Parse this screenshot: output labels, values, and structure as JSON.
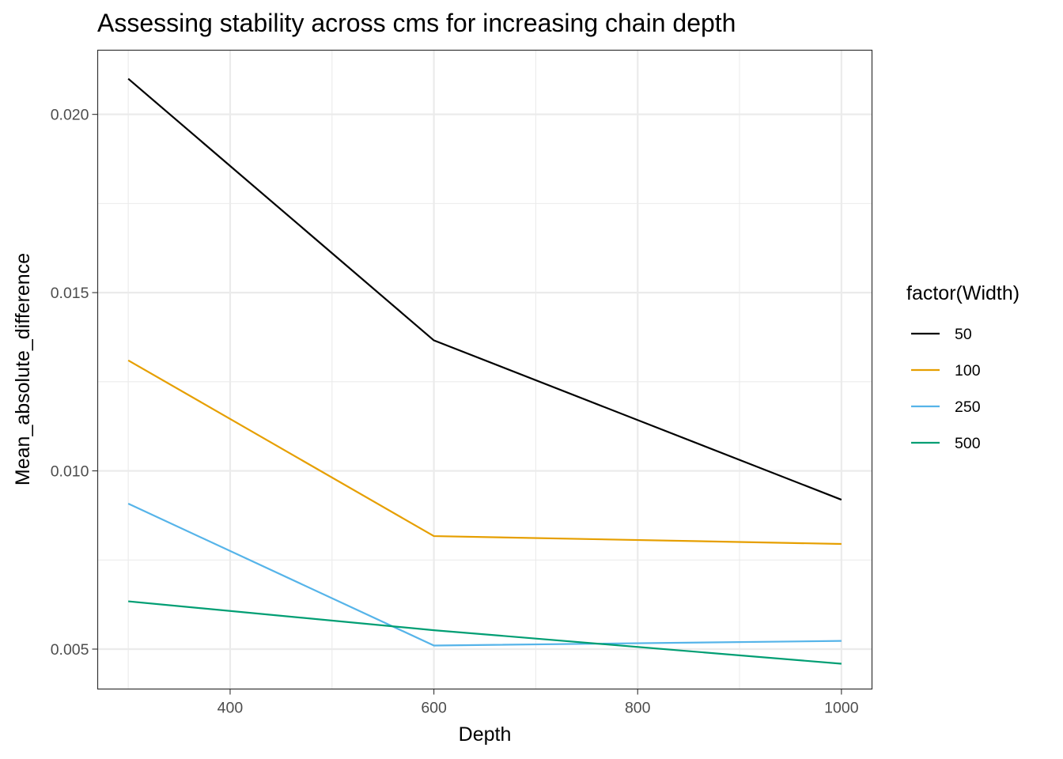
{
  "chart_data": {
    "type": "line",
    "title": "Assessing stability across cms for increasing chain depth",
    "xlabel": "Depth",
    "ylabel": "Mean_absolute_difference",
    "x": [
      300,
      600,
      1000
    ],
    "xlim": [
      270,
      1030
    ],
    "ylim": [
      0.00388,
      0.0218
    ],
    "xticks": [
      400,
      600,
      800,
      1000
    ],
    "xtick_labels": [
      "400",
      "600",
      "800",
      "1000"
    ],
    "yticks": [
      0.005,
      0.01,
      0.015,
      0.02
    ],
    "ytick_labels": [
      "0.005",
      "0.010",
      "0.015",
      "0.020"
    ],
    "grid": true,
    "legend": {
      "title": "factor(Width)",
      "position": "right"
    },
    "series": [
      {
        "name": "50",
        "color": "#000000",
        "values": [
          0.021,
          0.01366,
          0.00919
        ]
      },
      {
        "name": "100",
        "color": "#E69F00",
        "values": [
          0.0131,
          0.00817,
          0.00795
        ]
      },
      {
        "name": "250",
        "color": "#56B4E9",
        "values": [
          0.00908,
          0.0051,
          0.00523
        ]
      },
      {
        "name": "500",
        "color": "#009E73",
        "values": [
          0.00634,
          0.00553,
          0.00459
        ]
      }
    ]
  }
}
